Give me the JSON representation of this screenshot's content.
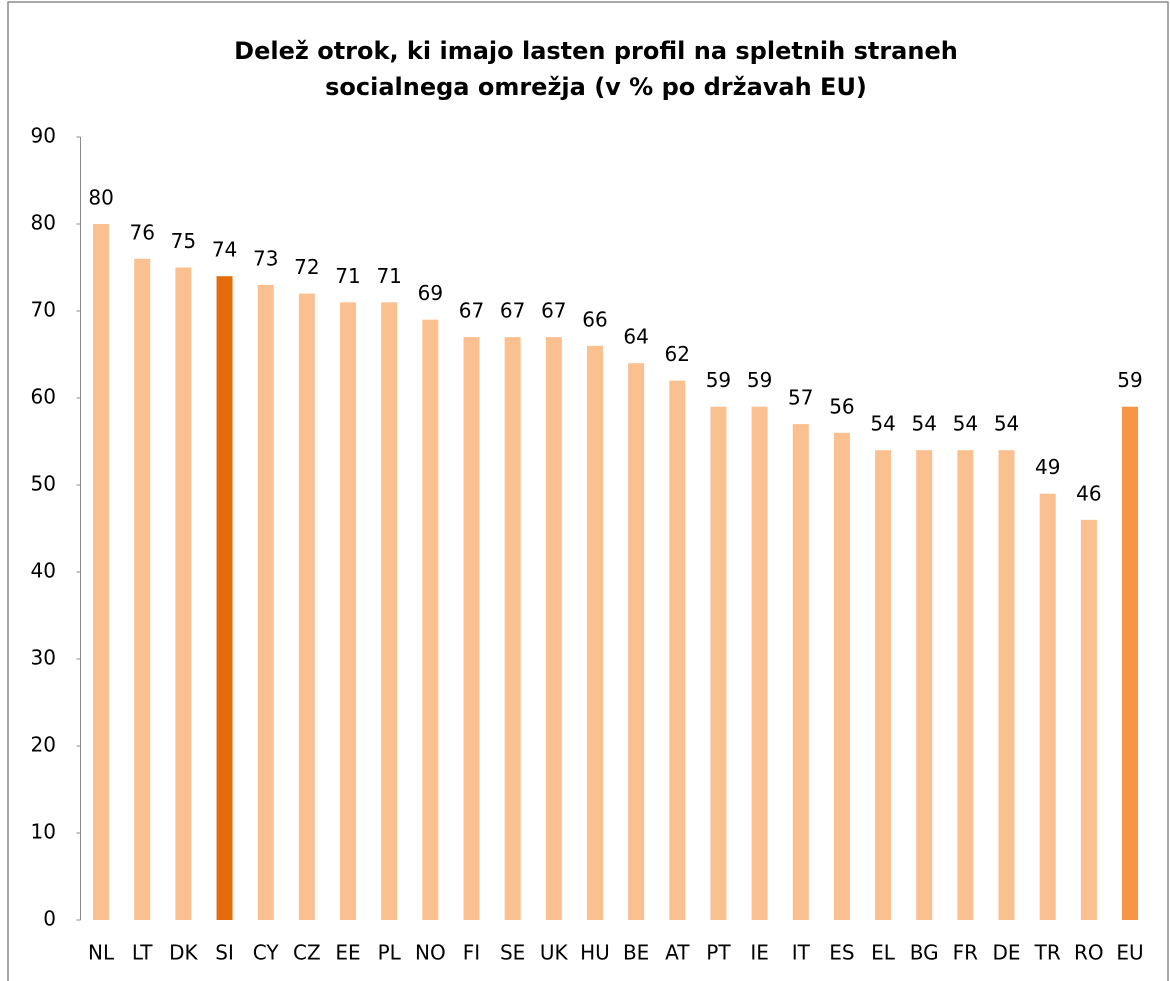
{
  "chart_data": {
    "type": "bar",
    "title": [
      "Delež otrok, ki imajo lasten profil na spletnih straneh",
      "socialnega omrežja (v % po državah EU)"
    ],
    "categories": [
      "NL",
      "LT",
      "DK",
      "SI",
      "CY",
      "CZ",
      "EE",
      "PL",
      "NO",
      "FI",
      "SE",
      "UK",
      "HU",
      "BE",
      "AT",
      "PT",
      "IE",
      "IT",
      "ES",
      "EL",
      "BG",
      "FR",
      "DE",
      "TR",
      "RO",
      "EU"
    ],
    "values": [
      80,
      76,
      75,
      74,
      73,
      72,
      71,
      71,
      69,
      67,
      67,
      67,
      66,
      64,
      62,
      59,
      59,
      57,
      56,
      54,
      54,
      54,
      54,
      49,
      46,
      59
    ],
    "colors": [
      "#fac090",
      "#fac090",
      "#fac090",
      "#e46c0a",
      "#fac090",
      "#fac090",
      "#fac090",
      "#fac090",
      "#fac090",
      "#fac090",
      "#fac090",
      "#fac090",
      "#fac090",
      "#fac090",
      "#fac090",
      "#fac090",
      "#fac090",
      "#fac090",
      "#fac090",
      "#fac090",
      "#fac090",
      "#fac090",
      "#fac090",
      "#fac090",
      "#fac090",
      "#f79646"
    ],
    "ylim": [
      0,
      90
    ],
    "yticks": [
      0,
      10,
      20,
      30,
      40,
      50,
      60,
      70,
      80,
      90
    ],
    "grid": false
  }
}
